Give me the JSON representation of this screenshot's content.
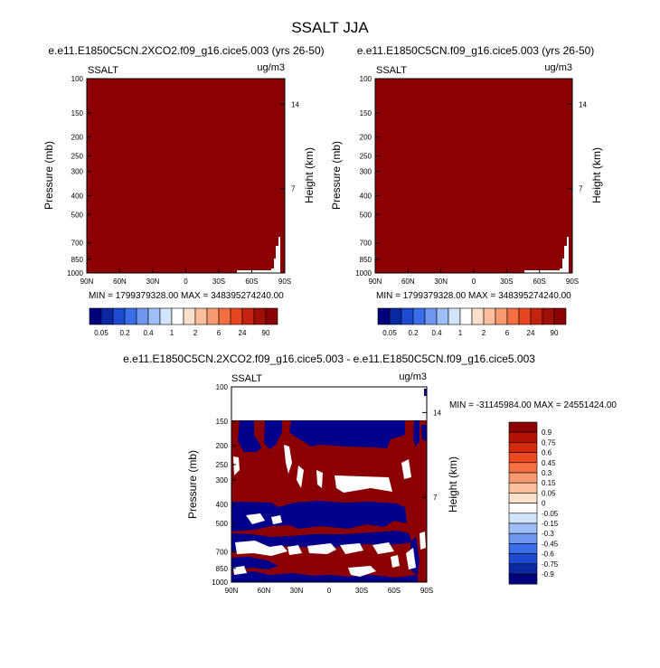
{
  "main_title": "SSALT JJA",
  "chart_data": [
    {
      "type": "heatmap",
      "title": "e.e11.E1850C5CN.2XCO2.f09_g16.cice5.003 (yrs 26-50)",
      "variable_label": "SSALT",
      "units_label": "ug/m3",
      "ylabel": "Pressure (mb)",
      "ylabel_right": "Height (km)",
      "x_ticks": [
        "90N",
        "60N",
        "30N",
        "0",
        "30S",
        "60S",
        "90S"
      ],
      "y_ticks": [
        "100",
        "150",
        "200",
        "250",
        "300",
        "400",
        "500",
        "700",
        "850",
        "1000"
      ],
      "y_right_ticks": [
        "14",
        "7"
      ],
      "min_max_text": "MIN = 1799379328.00   MAX = 348395274240.00",
      "colorbar_labels": [
        "0.05",
        "0.2",
        "0.4",
        "1",
        "2",
        "6",
        "24",
        "90"
      ],
      "colorbar_colors": [
        "#00007f",
        "#0a28a0",
        "#1c4bd2",
        "#3a6ee8",
        "#6e98f0",
        "#9fbef5",
        "#d2e4fa",
        "#ffffff",
        "#fde0cc",
        "#fbbf9e",
        "#f79a70",
        "#f46f42",
        "#e8461f",
        "#c42310",
        "#a00f05",
        "#8b0000"
      ],
      "field_color": "#8b0000"
    },
    {
      "type": "heatmap",
      "title": "e.e11.E1850C5CN.f09_g16.cice5.003 (yrs 26-50)",
      "variable_label": "SSALT",
      "units_label": "ug/m3",
      "ylabel": "Pressure (mb)",
      "ylabel_right": "Height (km)",
      "x_ticks": [
        "90N",
        "60N",
        "30N",
        "0",
        "30S",
        "60S",
        "90S"
      ],
      "y_ticks": [
        "100",
        "150",
        "200",
        "250",
        "300",
        "400",
        "500",
        "700",
        "850",
        "1000"
      ],
      "y_right_ticks": [
        "14",
        "7"
      ],
      "min_max_text": "MIN = 1799379328.00   MAX = 348395274240.00",
      "colorbar_labels": [
        "0.05",
        "0.2",
        "0.4",
        "1",
        "2",
        "6",
        "24",
        "90"
      ],
      "colorbar_colors": [
        "#00007f",
        "#0a28a0",
        "#1c4bd2",
        "#3a6ee8",
        "#6e98f0",
        "#9fbef5",
        "#d2e4fa",
        "#ffffff",
        "#fde0cc",
        "#fbbf9e",
        "#f79a70",
        "#f46f42",
        "#e8461f",
        "#c42310",
        "#a00f05",
        "#8b0000"
      ],
      "field_color": "#8b0000"
    },
    {
      "type": "heatmap",
      "title": "e.e11.E1850C5CN.2XCO2.f09_g16.cice5.003 - e.e11.E1850C5CN.f09_g16.cice5.003",
      "variable_label": "SSALT",
      "units_label": "ug/m3",
      "ylabel": "Pressure (mb)",
      "ylabel_right": "Height (km)",
      "x_ticks": [
        "90N",
        "60N",
        "30N",
        "0",
        "30S",
        "60S",
        "90S"
      ],
      "y_ticks": [
        "100",
        "150",
        "200",
        "250",
        "300",
        "400",
        "500",
        "700",
        "850",
        "1000"
      ],
      "y_right_ticks": [
        "14",
        "7"
      ],
      "min_max_text": "MIN = -31145984.00   MAX = 24551424.00",
      "colorbar_labels": [
        "0.9",
        "0.75",
        "0.6",
        "0.45",
        "0.3",
        "0.15",
        "0.05",
        "0",
        "-0.05",
        "-0.15",
        "-0.3",
        "-0.45",
        "-0.6",
        "-0.75",
        "-0.9"
      ],
      "colorbar_colors": [
        "#8b0000",
        "#b41205",
        "#d42a0c",
        "#ea4a20",
        "#f46f42",
        "#f79a70",
        "#fbbf9e",
        "#fde0cc",
        "#ffffff",
        "#d2e4fa",
        "#9fbef5",
        "#6e98f0",
        "#3a6ee8",
        "#1c4bd2",
        "#0a28a0",
        "#00007f"
      ],
      "colors": {
        "positive": "#8b0000",
        "negative": "#00008b",
        "neutral": "#ffffff"
      }
    }
  ]
}
